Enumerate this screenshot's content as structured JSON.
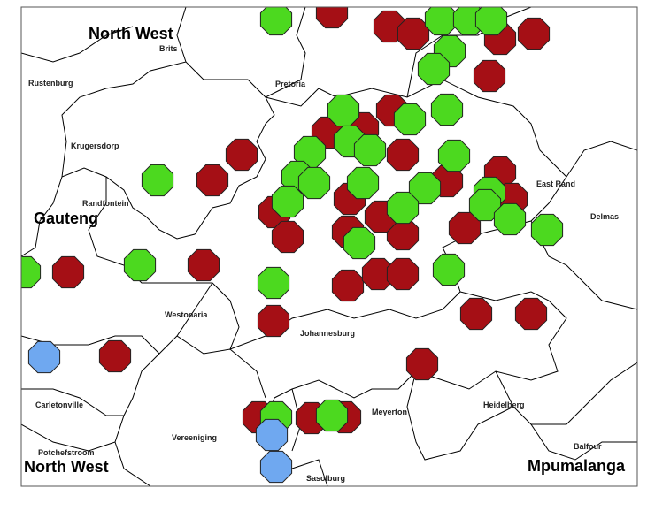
{
  "regions": [
    "North West",
    "Gauteng",
    "North West",
    "Mpumalanga"
  ],
  "towns": [
    "Brits",
    "Rustenburg",
    "Pretoria",
    "Krugersdorp",
    "Randfontein",
    "East Rand",
    "Delmas",
    "Westonaria",
    "Johannesburg",
    "Carletonville",
    "Meyerton",
    "Heidelberg",
    "Vereeniging",
    "Potchefstroom",
    "Balfour",
    "Sasolburg"
  ]
}
